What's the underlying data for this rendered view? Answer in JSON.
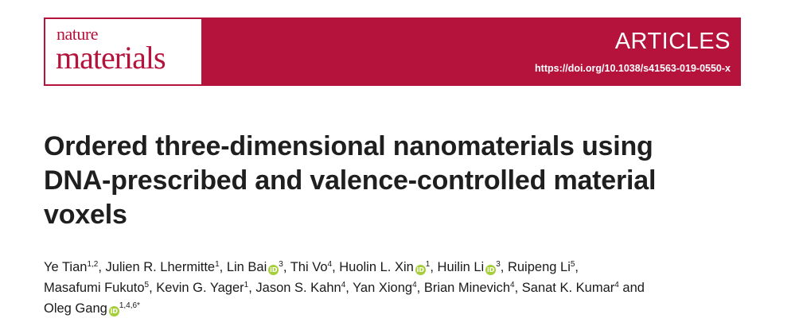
{
  "header": {
    "journal_line1": "nature",
    "journal_line2": "materials",
    "section": "ARTICLES",
    "doi": "https://doi.org/10.1038/s41563-019-0550-x"
  },
  "article": {
    "title_line1": "Ordered three-dimensional nanomaterials using",
    "title_line2": "DNA-prescribed and valence-controlled material",
    "title_line3": "voxels"
  },
  "authors": {
    "orcid_glyph": "iD",
    "list": [
      {
        "name": "Ye Tian",
        "aff": "1,2",
        "sep": ", "
      },
      {
        "name": "Julien R. Lhermitte",
        "aff": "1",
        "sep": ", "
      },
      {
        "name": "Lin Bai",
        "aff": "3",
        "sep": ", ",
        "orcid": true
      },
      {
        "name": "Thi Vo",
        "aff": "4",
        "sep": ", "
      },
      {
        "name": "Huolin L. Xin",
        "aff": "1",
        "sep": ", ",
        "orcid": true
      },
      {
        "name": "Huilin Li",
        "aff": "3",
        "sep": ", ",
        "orcid": true
      },
      {
        "name": "Ruipeng Li",
        "aff": "5",
        "sep": ","
      },
      {
        "name": "Masafumi Fukuto",
        "aff": "5",
        "sep": ", "
      },
      {
        "name": "Kevin G. Yager",
        "aff": "1",
        "sep": ", "
      },
      {
        "name": "Jason S. Kahn",
        "aff": "4",
        "sep": ", "
      },
      {
        "name": "Yan Xiong",
        "aff": "4",
        "sep": ", "
      },
      {
        "name": "Brian Minevich",
        "aff": "4",
        "sep": ", "
      },
      {
        "name": "Sanat K. Kumar",
        "aff": "4",
        "sep": " and"
      },
      {
        "name": "Oleg Gang",
        "aff": "1,4,6*",
        "sep": "",
        "orcid": true
      }
    ]
  },
  "colors": {
    "brand": "#b5123c",
    "orcid": "#a6ce39"
  }
}
